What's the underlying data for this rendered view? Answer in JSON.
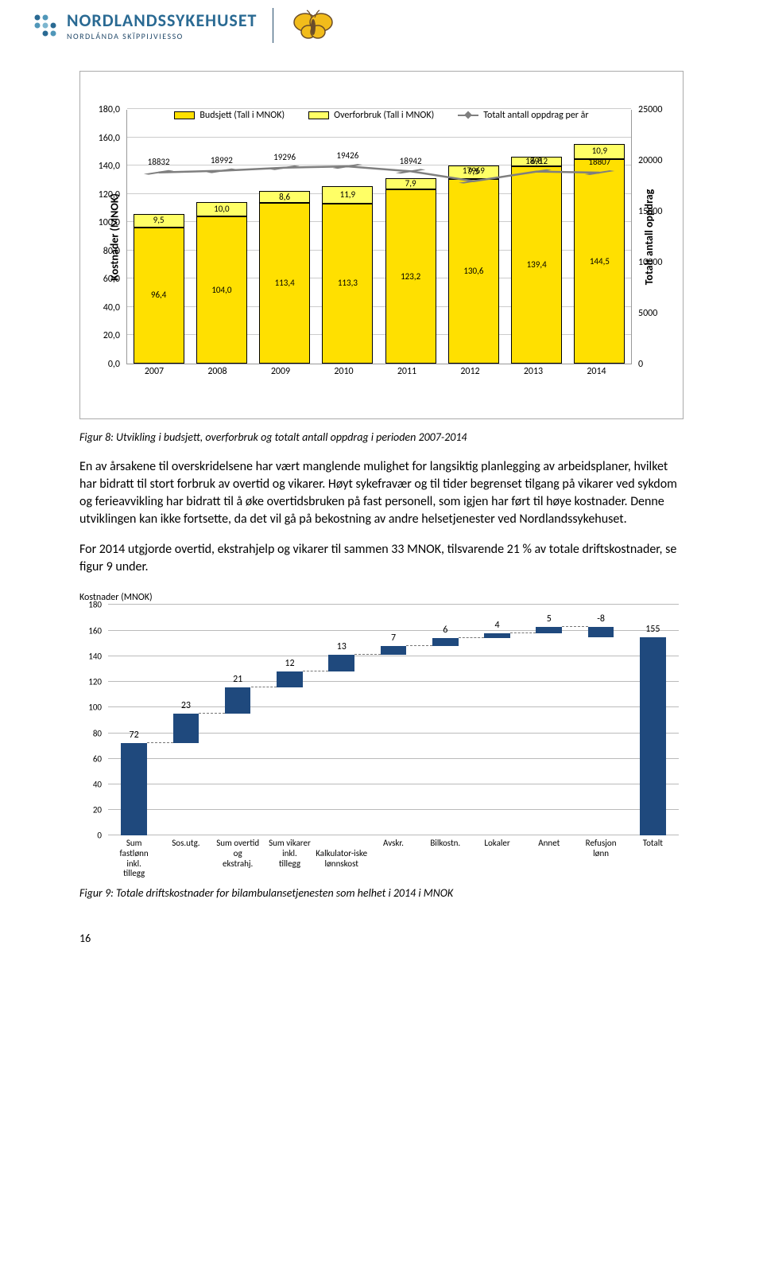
{
  "header": {
    "org_main": "NORDLANDSSYKEHUSET",
    "org_sub": "NORDLÁNDA SKÏPPIJVIESSO",
    "dot_colors": [
      "#2a6a93",
      "#5097b9",
      "#7db6cf",
      "#2a6a93",
      "#5097b9",
      "#7db6cf",
      "#2a6a93"
    ],
    "butterfly_body": "#6b4d2a",
    "butterfly_wing": "#f2bc1b"
  },
  "chart1": {
    "type": "stacked-bar-with-line",
    "categories": [
      "2007",
      "2008",
      "2009",
      "2010",
      "2011",
      "2012",
      "2013",
      "2014"
    ],
    "budget": [
      96.4,
      104.0,
      113.4,
      113.3,
      123.2,
      130.6,
      139.4,
      144.5
    ],
    "over": [
      9.5,
      10.0,
      8.6,
      11.9,
      7.9,
      9.5,
      6.8,
      10.9
    ],
    "line": [
      18832,
      18992,
      19296,
      19426,
      18942,
      17969,
      18912,
      18807
    ],
    "y_left": {
      "min": 0,
      "max": 180,
      "step": 20,
      "label": "Kostnader (MNOK)"
    },
    "y_right": {
      "min": 0,
      "max": 25000,
      "step": 5000,
      "label": "Totalt antall oppdrag"
    },
    "colors": {
      "budget": "#ffe000",
      "over": "#ffff66",
      "line": "#7f7f7f",
      "border": "#000000",
      "grid": "#cccccc",
      "frame": "#aaaaaa"
    },
    "legend": {
      "budget": "Budsjett (Tall i MNOK)",
      "over": "Overforbruk (Tall i MNOK)",
      "line": "Totalt antall oppdrag per år"
    }
  },
  "cap1": "Figur 8: Utvikling i budsjett, overforbruk og totalt antall oppdrag i perioden 2007-2014",
  "para1": "En av årsakene til overskridelsene har vært manglende mulighet for langsiktig planlegging av arbeidsplaner, hvilket har bidratt til stort forbruk av overtid og vikarer. Høyt sykefravær og til tider begrenset tilgang på vikarer ved sykdom og ferieavvikling har bidratt til å øke overtidsbruken på fast personell, som igjen har ført til høye kostnader. Denne utviklingen kan ikke fortsette, da det vil gå på bekostning av andre helsetjenester ved Nordlandssykehuset.",
  "para2": "For 2014 utgjorde overtid, ekstrahjelp og vikarer til sammen 33 MNOK, tilsvarende 21 % av totale driftskostnader, se figur 9 under.",
  "chart2": {
    "type": "waterfall",
    "ylabel": "Kostnader (MNOK)",
    "y": {
      "min": 0,
      "max": 180,
      "step": 20
    },
    "categories": [
      "Sum fastlønn inkl. tillegg",
      "Sos.utg.",
      "Sum overtid og ekstrahj.",
      "Sum vikarer inkl. tillegg",
      "Kalkulator-iske lønnskost",
      "Avskr.",
      "Bilkostn.",
      "Lokaler",
      "Annet",
      "Refusjon lønn",
      "Totalt"
    ],
    "start": [
      0,
      72,
      95,
      116,
      128,
      141,
      148,
      154,
      158,
      155,
      0
    ],
    "end": [
      72,
      95,
      116,
      128,
      141,
      148,
      154,
      158,
      163,
      163,
      155
    ],
    "values": [
      72,
      23,
      21,
      12,
      13,
      7,
      6,
      4,
      5,
      -8,
      155
    ],
    "colors": {
      "bar": "#1f497d",
      "grid": "#bbbbbb",
      "dash": "#777777",
      "neg": "#1f497d"
    }
  },
  "cap2": "Figur 9: Totale driftskostnader for bilambulansetjenesten som helhet i 2014 i MNOK",
  "page": "16"
}
